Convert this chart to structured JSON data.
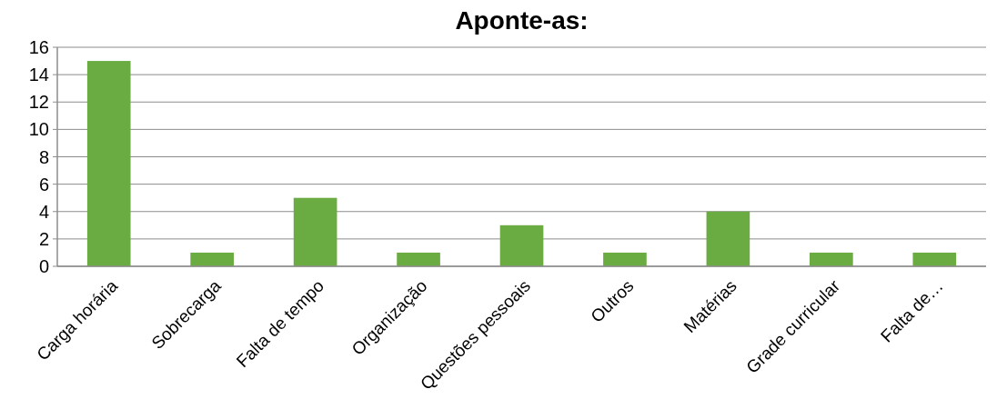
{
  "chart_data": {
    "type": "bar",
    "title": "Aponte-as:",
    "categories": [
      "Carga horária",
      "Sobrecarga",
      "Falta de tempo",
      "Organização",
      "Questões pessoais",
      "Outros",
      "Matérias",
      "Grade curricular",
      "Falta de…"
    ],
    "values": [
      15,
      1,
      5,
      1,
      3,
      1,
      4,
      1,
      1
    ],
    "color": "#6aab42",
    "ylim": [
      0,
      16
    ],
    "yticks": [
      0,
      2,
      4,
      6,
      8,
      10,
      12,
      14,
      16
    ],
    "grid": "y"
  }
}
